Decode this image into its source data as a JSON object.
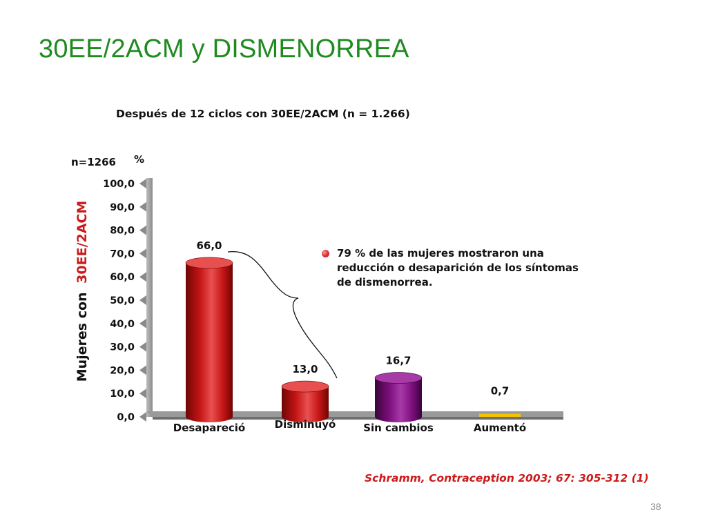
{
  "slide": {
    "title": "30EE/2ACM y DISMENORREA",
    "page_number": "38",
    "citation": "Schramm, Contraception 2003; 67: 305-312 (1)",
    "note": "79 % de las mujeres mostraron una reducción o desaparición de los síntomas de dismenorrea."
  },
  "chart_data": {
    "type": "bar",
    "title": "Después de 12 ciclos con 30EE/2ACM (n = 1.266)",
    "n_label": "n=1266",
    "unit_label": "%",
    "ylabel_prefix": "Mujeres con",
    "ylabel_highlight": "30EE/2ACM",
    "ylim": [
      0,
      100
    ],
    "yticks": [
      "0,0",
      "10,0",
      "20,0",
      "30,0",
      "40,0",
      "50,0",
      "60,0",
      "70,0",
      "80,0",
      "90,0",
      "100,0"
    ],
    "categories": [
      "Desapareció",
      "Disminuyó",
      "Sin cambios",
      "Aumentó"
    ],
    "values": [
      66.0,
      13.0,
      16.7,
      0.7
    ],
    "value_labels": [
      "66,0",
      "13,0",
      "16,7",
      "0,7"
    ],
    "colors": [
      "#c41414",
      "#c41414",
      "#7a0e7a",
      "#f5c400"
    ],
    "dark_colors": [
      "#6e0606",
      "#6e0606",
      "#3a043a",
      "#c99600"
    ],
    "light_colors": [
      "#e85050",
      "#e85050",
      "#a83aa8",
      "#ffe066"
    ],
    "ylabel_color": "#cc1a1a",
    "grid": false,
    "legend": "none"
  }
}
